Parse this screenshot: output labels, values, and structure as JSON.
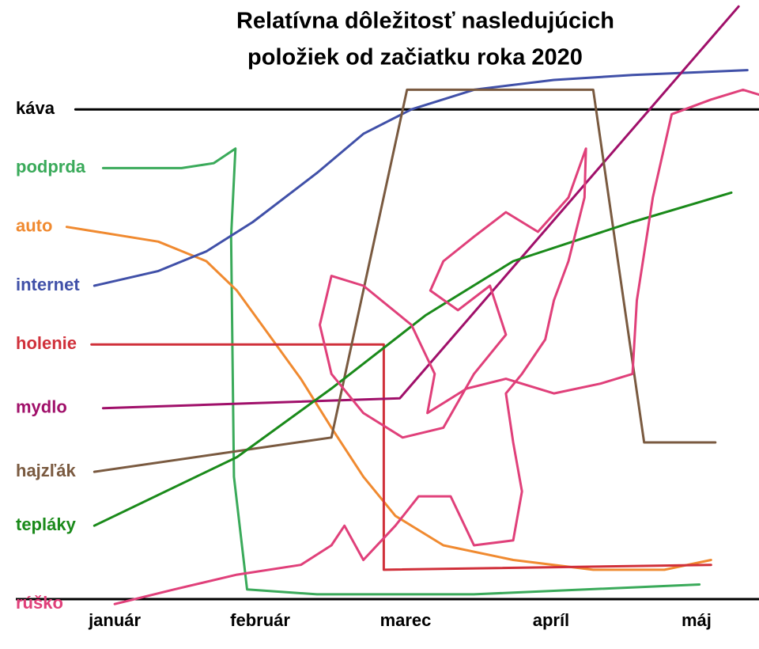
{
  "chart_data": {
    "type": "line",
    "title": [
      "Relatívna dôležitosť nasledujúcich",
      "položiek od začiatku roka 2020"
    ],
    "xlim": [
      -68,
      443
    ],
    "ylim": [
      -5,
      122
    ],
    "xticks": [
      {
        "value": 0,
        "label": "január"
      },
      {
        "value": 100,
        "label": "február"
      },
      {
        "value": 200,
        "label": "marec"
      },
      {
        "value": 300,
        "label": "apríl"
      },
      {
        "value": 400,
        "label": "máj"
      }
    ],
    "grid": false,
    "series": [
      {
        "name": "káva",
        "color": "#000000",
        "x": [
          -27,
          443
        ],
        "values": [
          100,
          100
        ]
      },
      {
        "name": "podprda",
        "color": "#3aaa5a",
        "x": [
          -8,
          46,
          68,
          83,
          80,
          82,
          91,
          139,
          247,
          402
        ],
        "values": [
          88,
          88,
          89,
          92,
          74,
          25,
          2,
          1,
          1,
          3
        ]
      },
      {
        "name": "auto",
        "color": "#f08a30",
        "x": [
          -33,
          30,
          63,
          84,
          106,
          128,
          149,
          171,
          193,
          226,
          274,
          329,
          378,
          410
        ],
        "values": [
          76,
          73,
          69,
          63,
          54,
          45,
          35,
          25,
          17,
          11,
          8,
          6,
          6,
          8
        ]
      },
      {
        "name": "internet",
        "color": "#4050a8",
        "x": [
          -14,
          30,
          63,
          95,
          139,
          171,
          204,
          247,
          302,
          356,
          435
        ],
        "values": [
          64,
          67,
          71,
          77,
          87,
          95,
          100,
          104,
          106,
          107,
          108
        ]
      },
      {
        "name": "holenie",
        "color": "#d0303a",
        "x": [
          -16,
          185,
          185,
          410
        ],
        "values": [
          52,
          52,
          6,
          7
        ]
      },
      {
        "name": "mydlo",
        "color": "#a0106a",
        "x": [
          -8,
          196,
          429
        ],
        "values": [
          39,
          41,
          121
        ]
      },
      {
        "name": "hajzľák",
        "color": "#7a5a40",
        "x": [
          -14,
          149,
          201,
          329,
          364,
          413
        ],
        "values": [
          26,
          33,
          104,
          104,
          32,
          32
        ]
      },
      {
        "name": "tepláky",
        "color": "#1a8a1a",
        "x": [
          -14,
          84,
          149,
          214,
          274,
          356,
          424
        ],
        "values": [
          15,
          29,
          43,
          58,
          69,
          77,
          83
        ]
      },
      {
        "name": "rúško",
        "color": "#e0407a",
        "x": [
          0,
          41,
          84,
          128,
          149,
          158,
          171,
          193,
          209,
          231,
          247,
          274,
          280,
          274,
          269,
          280,
          296,
          302,
          312,
          323,
          324,
          312,
          291,
          269,
          247,
          226,
          217,
          236,
          258,
          269,
          247,
          226,
          198,
          171,
          149,
          141,
          149,
          171,
          204,
          220,
          215,
          242,
          269,
          302,
          334,
          356,
          359,
          370,
          383,
          410,
          432,
          443
        ],
        "values": [
          -1,
          2,
          5,
          7,
          11,
          15,
          8,
          15,
          21,
          21,
          11,
          12,
          22,
          32,
          42,
          46,
          53,
          61,
          69,
          82,
          92,
          82,
          75,
          79,
          74,
          69,
          63,
          59,
          64,
          54,
          46,
          35,
          33,
          38,
          46,
          56,
          66,
          64,
          56,
          46,
          38,
          43,
          45,
          42,
          44,
          46,
          61,
          82,
          99,
          102,
          104,
          103
        ]
      }
    ]
  }
}
